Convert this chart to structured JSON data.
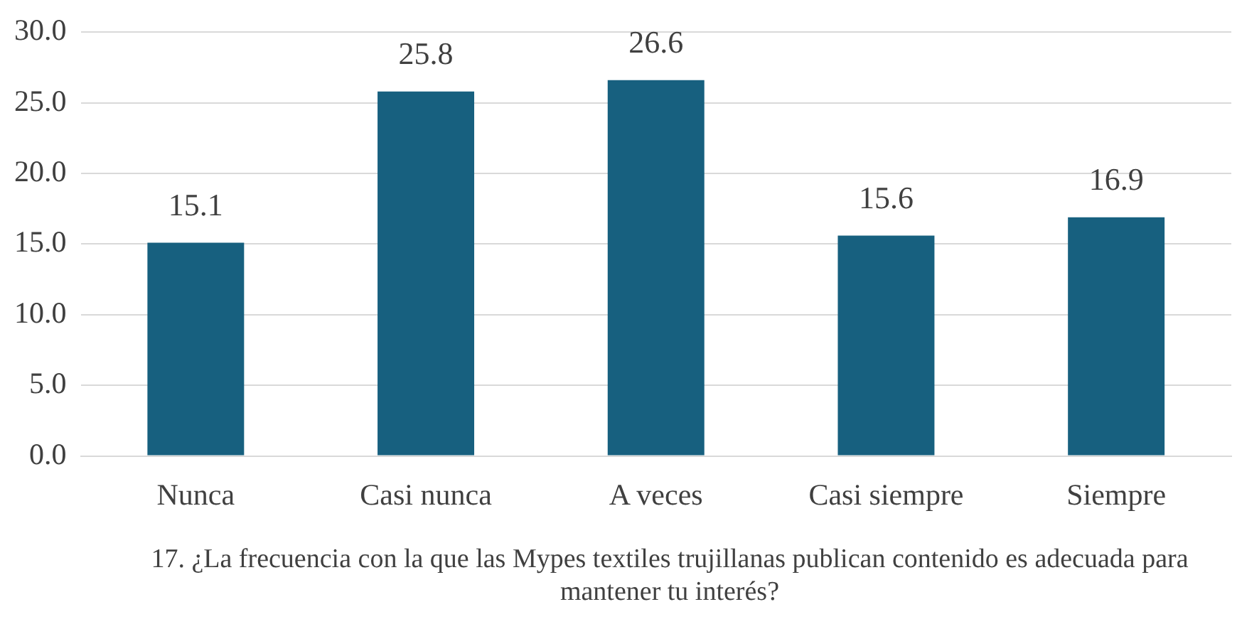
{
  "chart_data": {
    "type": "bar",
    "xlabel": "17.   ¿La frecuencia con la que las Mypes textiles trujillanas publican contenido es adecuada para mantener tu interés?",
    "categories": [
      "Nunca",
      "Casi nunca",
      "A veces",
      "Casi siempre",
      "Siempre"
    ],
    "values": [
      15.1,
      25.8,
      26.6,
      15.6,
      16.9
    ],
    "color": "#17607f",
    "data_labels": true,
    "grid": "y",
    "legend": false,
    "ylim": [
      0,
      30
    ],
    "yticks": [
      {
        "value": 0,
        "label": "0.0"
      },
      {
        "value": 5,
        "label": "5.0"
      },
      {
        "value": 10,
        "label": "10.0"
      },
      {
        "value": 15,
        "label": "15.0"
      },
      {
        "value": 20,
        "label": "20.0"
      },
      {
        "value": 25,
        "label": "25.0"
      },
      {
        "value": 30,
        "label": "30.0"
      }
    ]
  }
}
